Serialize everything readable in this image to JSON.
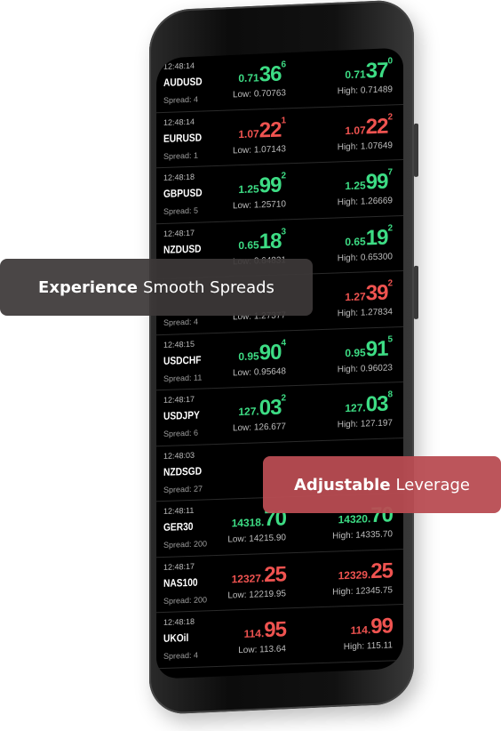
{
  "quotes": [
    {
      "time": "12:48:14",
      "symbol": "AUDUSD",
      "spread": "Spread: 4",
      "dir": "up",
      "bid": {
        "pre": "0.71",
        "big": "36",
        "sup": "6"
      },
      "low": "Low: 0.70763",
      "ask": {
        "pre": "0.71",
        "big": "37",
        "sup": "0"
      },
      "high": "High: 0.71489"
    },
    {
      "time": "12:48:14",
      "symbol": "EURUSD",
      "spread": "Spread: 1",
      "dir": "down",
      "bid": {
        "pre": "1.07",
        "big": "22",
        "sup": "1"
      },
      "low": "Low: 1.07143",
      "ask": {
        "pre": "1.07",
        "big": "22",
        "sup": "2"
      },
      "high": "High: 1.07649"
    },
    {
      "time": "12:48:18",
      "symbol": "GBPUSD",
      "spread": "Spread: 5",
      "dir": "up",
      "bid": {
        "pre": "1.25",
        "big": "99",
        "sup": "2"
      },
      "low": "Low: 1.25710",
      "ask": {
        "pre": "1.25",
        "big": "99",
        "sup": "7"
      },
      "high": "High: 1.26669"
    },
    {
      "time": "12:48:17",
      "symbol": "NZDUSD",
      "spread": "",
      "dir": "up",
      "bid": {
        "pre": "0.65",
        "big": "18",
        "sup": "3"
      },
      "low": "Low: 0.64831",
      "ask": {
        "pre": "0.65",
        "big": "19",
        "sup": "2"
      },
      "high": "High: 0.65300"
    },
    {
      "time": "",
      "symbol": "",
      "spread": "Spread: 4",
      "dir": "down",
      "bid": {
        "pre": "",
        "big": "",
        "sup": ""
      },
      "low": "Low: 1.27377",
      "ask": {
        "pre": "1.27",
        "big": "39",
        "sup": "2"
      },
      "high": "High: 1.27834"
    },
    {
      "time": "12:48:15",
      "symbol": "USDCHF",
      "spread": "Spread: 11",
      "dir": "up",
      "bid": {
        "pre": "0.95",
        "big": "90",
        "sup": "4"
      },
      "low": "Low: 0.95648",
      "ask": {
        "pre": "0.95",
        "big": "91",
        "sup": "5"
      },
      "high": "High: 0.96023"
    },
    {
      "time": "12:48:17",
      "symbol": "USDJPY",
      "spread": "Spread: 6",
      "dir": "up",
      "bid": {
        "pre": "127.",
        "big": "03",
        "sup": "2"
      },
      "low": "Low: 126.677",
      "ask": {
        "pre": "127.",
        "big": "03",
        "sup": "8"
      },
      "high": "High: 127.197"
    },
    {
      "time": "12:48:03",
      "symbol": "NZDSGD",
      "spread": "Spread: 27",
      "dir": "up",
      "bid": {
        "pre": "",
        "big": "",
        "sup": ""
      },
      "low": "",
      "ask": {
        "pre": "",
        "big": "",
        "sup": ""
      },
      "high": ""
    },
    {
      "time": "12:48:11",
      "symbol": "GER30",
      "spread": "Spread: 200",
      "dir": "up",
      "bid": {
        "pre": "14318.",
        "big": "70",
        "sup": ""
      },
      "low": "Low: 14215.90",
      "ask": {
        "pre": "14320.",
        "big": "70",
        "sup": ""
      },
      "high": "High: 14335.70"
    },
    {
      "time": "12:48:17",
      "symbol": "NAS100",
      "spread": "Spread: 200",
      "dir": "down",
      "bid": {
        "pre": "12327.",
        "big": "25",
        "sup": ""
      },
      "low": "Low: 12219.95",
      "ask": {
        "pre": "12329.",
        "big": "25",
        "sup": ""
      },
      "high": "High: 12345.75"
    },
    {
      "time": "12:48:18",
      "symbol": "UKOil",
      "spread": "Spread: 4",
      "dir": "down",
      "bid": {
        "pre": "114.",
        "big": "95",
        "sup": ""
      },
      "low": "Low: 113.64",
      "ask": {
        "pre": "114.",
        "big": "99",
        "sup": ""
      },
      "high": "High: 115.11"
    }
  ],
  "badges": {
    "spreads_bold": "Experience",
    "spreads_rest": "Smooth Spreads",
    "leverage_bold": "Adjustable",
    "leverage_rest": "Leverage"
  }
}
